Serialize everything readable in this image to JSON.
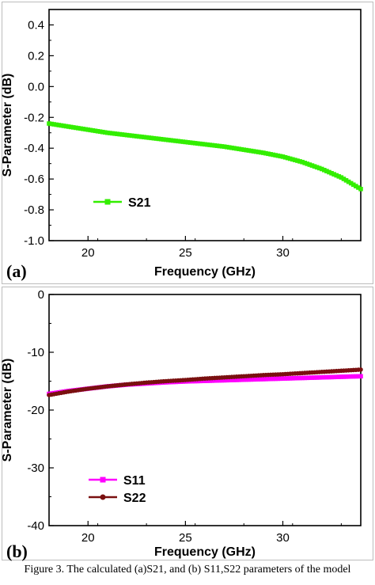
{
  "caption": "Figure 3. The calculated (a)S21, and (b) S11,S22 parameters of the model",
  "chart_data": [
    {
      "type": "line",
      "panel_label": "(a)",
      "xlabel": "Frequency (GHz)",
      "ylabel": "S-Parameter (dB)",
      "xlim": [
        18,
        34
      ],
      "ylim": [
        -1.0,
        0.5
      ],
      "xticks": [
        20,
        25,
        30
      ],
      "yticks": [
        0.4,
        0.2,
        0.0,
        -0.2,
        -0.4,
        -0.6,
        -0.8,
        -1.0
      ],
      "ytick_labels": [
        "0.4",
        "0.2",
        "0.0",
        "-0.2",
        "-0.4",
        "-0.6",
        "-0.8",
        "-1.0"
      ],
      "legend_position": "lower-left",
      "grid": false,
      "series": [
        {
          "name": "S21",
          "color": "#33ee00",
          "marker": "square",
          "x": [
            18,
            19,
            20,
            21,
            22,
            23,
            24,
            25,
            26,
            27,
            28,
            29,
            30,
            31,
            32,
            33,
            34
          ],
          "values": [
            -0.24,
            -0.26,
            -0.28,
            -0.3,
            -0.315,
            -0.33,
            -0.345,
            -0.36,
            -0.375,
            -0.39,
            -0.41,
            -0.43,
            -0.455,
            -0.49,
            -0.535,
            -0.59,
            -0.665
          ]
        }
      ]
    },
    {
      "type": "line",
      "panel_label": "(b)",
      "xlabel": "Frequency (GHz)",
      "ylabel": "S-Parameter (dB)",
      "xlim": [
        18,
        34
      ],
      "ylim": [
        -40,
        0
      ],
      "xticks": [
        20,
        25,
        30
      ],
      "yticks": [
        0,
        -10,
        -20,
        -30,
        -40
      ],
      "ytick_labels": [
        "0",
        "-10",
        "-20",
        "-30",
        "-40"
      ],
      "legend_position": "lower-left",
      "grid": false,
      "series": [
        {
          "name": "S11",
          "color": "#ff00ff",
          "marker": "square",
          "x": [
            18,
            19,
            20,
            21,
            22,
            23,
            24,
            25,
            26,
            27,
            28,
            29,
            30,
            31,
            32,
            33,
            34
          ],
          "values": [
            -17.2,
            -16.7,
            -16.3,
            -15.9,
            -15.6,
            -15.4,
            -15.2,
            -15.05,
            -14.95,
            -14.85,
            -14.75,
            -14.65,
            -14.55,
            -14.45,
            -14.35,
            -14.25,
            -14.15
          ]
        },
        {
          "name": "S22",
          "color": "#7a1010",
          "marker": "circle",
          "x": [
            18,
            19,
            20,
            21,
            22,
            23,
            24,
            25,
            26,
            27,
            28,
            29,
            30,
            31,
            32,
            33,
            34
          ],
          "values": [
            -17.4,
            -16.8,
            -16.3,
            -15.9,
            -15.55,
            -15.25,
            -15.0,
            -14.8,
            -14.55,
            -14.35,
            -14.15,
            -13.95,
            -13.8,
            -13.6,
            -13.4,
            -13.2,
            -13.0
          ]
        }
      ]
    }
  ]
}
